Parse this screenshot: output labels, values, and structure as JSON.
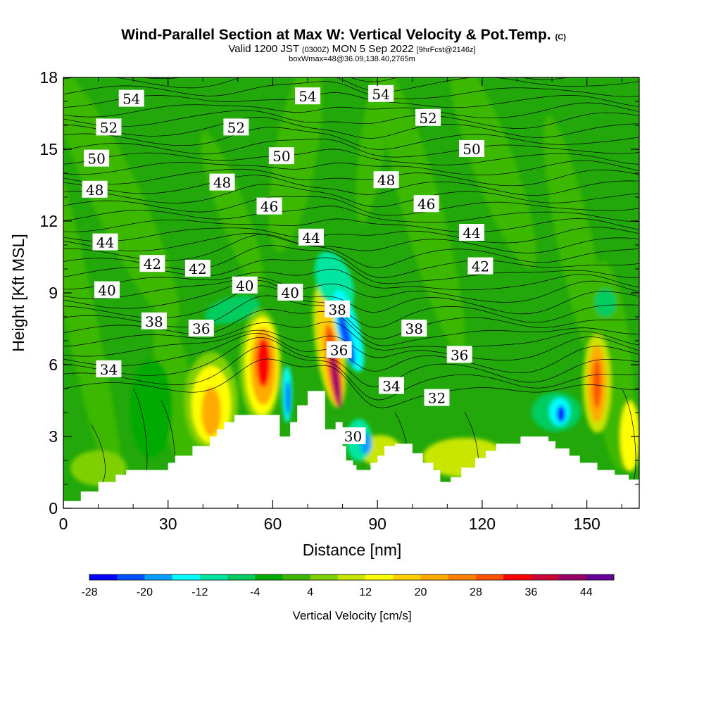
{
  "chart_data": {
    "type": "heatmap",
    "title": "Wind-Parallel Section at Max W: Vertical Velocity & Pot.Temp.",
    "title_tag": "(C)",
    "subtitle_parts": [
      "Valid 1200 JST ",
      "(0300Z)",
      " MON 5 Sep 2022 ",
      "[9hrFcst@2146z]"
    ],
    "subtitle2": "boxWmax=48@36.09,138.40,2765m",
    "xlabel": "Distance [nm]",
    "ylabel": "Height [Kft MSL]",
    "xlim": [
      0,
      165
    ],
    "ylim": [
      0,
      18
    ],
    "x_ticks": [
      0,
      30,
      60,
      90,
      120,
      150
    ],
    "y_ticks": [
      0,
      3,
      6,
      9,
      12,
      15,
      18
    ],
    "colorbar": {
      "title": "Vertical Velocity [cm/s]",
      "levels": [
        -28,
        -24,
        -20,
        -16,
        -12,
        -8,
        -4,
        0,
        4,
        8,
        12,
        16,
        20,
        24,
        28,
        32,
        36,
        40,
        44,
        48
      ],
      "colors": [
        "#0000ff",
        "#0050ff",
        "#00a0ff",
        "#00ffff",
        "#00e6a0",
        "#00cc60",
        "#00aa00",
        "#3cb800",
        "#7fd000",
        "#c8e600",
        "#ffff00",
        "#ffd000",
        "#ffaa00",
        "#ff8000",
        "#ff5000",
        "#ff0000",
        "#cc0033",
        "#990066",
        "#660099"
      ],
      "tick_labels": [
        -28,
        -20,
        -12,
        -4,
        4,
        12,
        20,
        28,
        36,
        44
      ]
    },
    "contour_labels": [
      {
        "value": "54",
        "x": 19.5,
        "y": 17.1
      },
      {
        "value": "54",
        "x": 70,
        "y": 17.2
      },
      {
        "value": "54",
        "x": 91,
        "y": 17.3
      },
      {
        "value": "52",
        "x": 13,
        "y": 15.9
      },
      {
        "value": "52",
        "x": 49.5,
        "y": 15.9
      },
      {
        "value": "52",
        "x": 104.5,
        "y": 16.3
      },
      {
        "value": "50",
        "x": 9.5,
        "y": 14.6
      },
      {
        "value": "50",
        "x": 62.5,
        "y": 14.7
      },
      {
        "value": "50",
        "x": 117,
        "y": 15.0
      },
      {
        "value": "48",
        "x": 9,
        "y": 13.3
      },
      {
        "value": "48",
        "x": 45.5,
        "y": 13.6
      },
      {
        "value": "48",
        "x": 92.5,
        "y": 13.7
      },
      {
        "value": "46",
        "x": 59,
        "y": 12.6
      },
      {
        "value": "46",
        "x": 104,
        "y": 12.7
      },
      {
        "value": "44",
        "x": 12,
        "y": 11.1
      },
      {
        "value": "44",
        "x": 71,
        "y": 11.3
      },
      {
        "value": "44",
        "x": 117,
        "y": 11.5
      },
      {
        "value": "42",
        "x": 25.5,
        "y": 10.2
      },
      {
        "value": "42",
        "x": 38.5,
        "y": 10.0
      },
      {
        "value": "42",
        "x": 119.5,
        "y": 10.1
      },
      {
        "value": "40",
        "x": 12.5,
        "y": 9.1
      },
      {
        "value": "40",
        "x": 52,
        "y": 9.3
      },
      {
        "value": "40",
        "x": 65,
        "y": 9.0
      },
      {
        "value": "38",
        "x": 26,
        "y": 7.8
      },
      {
        "value": "38",
        "x": 78.5,
        "y": 8.3
      },
      {
        "value": "38",
        "x": 100.5,
        "y": 7.5
      },
      {
        "value": "36",
        "x": 39.5,
        "y": 7.5
      },
      {
        "value": "36",
        "x": 79,
        "y": 6.6
      },
      {
        "value": "36",
        "x": 113.5,
        "y": 6.4
      },
      {
        "value": "34",
        "x": 13,
        "y": 5.8
      },
      {
        "value": "34",
        "x": 94,
        "y": 5.1
      },
      {
        "value": "32",
        "x": 107,
        "y": 4.6
      },
      {
        "value": "30",
        "x": 83,
        "y": 3.0
      }
    ]
  }
}
